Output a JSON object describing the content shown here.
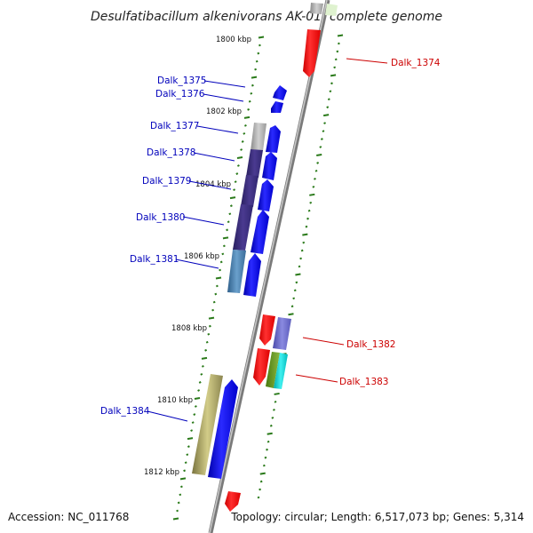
{
  "title": "Desulfatibacillum alkenivorans AK-01, complete genome",
  "accession": "Accession: NC_011768",
  "topology": "Topology: circular; Length: 6,517,073 bp; Genes: 5,314",
  "colors": {
    "forward_label": "#0000bb",
    "reverse_label": "#cc0000",
    "tick": "#2a7a1a",
    "backbone": "#888888"
  },
  "kbp_marks": [
    "1800 kbp",
    "1802 kbp",
    "1804 kbp",
    "1806 kbp",
    "1808 kbp",
    "1810 kbp",
    "1812 kbp"
  ],
  "forward_genes": [
    "Dalk_1375",
    "Dalk_1376",
    "Dalk_1377",
    "Dalk_1378",
    "Dalk_1379",
    "Dalk_1380",
    "Dalk_1381",
    "Dalk_1384"
  ],
  "reverse_genes": [
    "Dalk_1374",
    "Dalk_1382",
    "Dalk_1383"
  ]
}
